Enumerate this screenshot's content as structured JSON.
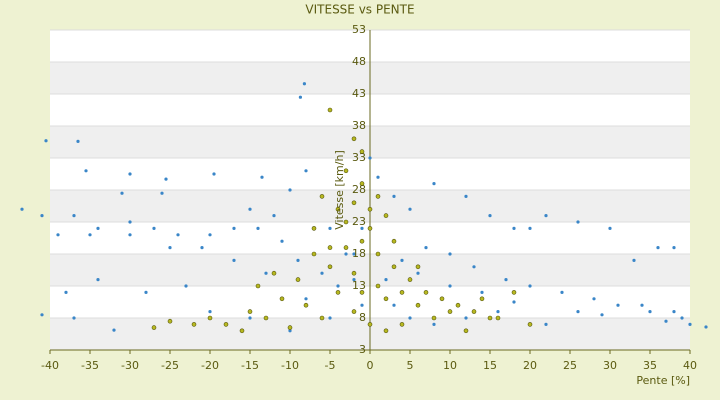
{
  "chart_data": {
    "type": "scatter",
    "title": "VITESSE vs PENTE",
    "x_label": "Pente [%]",
    "y_label": "Vitesse [km/h]",
    "xlim": [
      -40,
      40
    ],
    "xticks": [
      -40,
      -35,
      -30,
      -25,
      -20,
      -15,
      -10,
      -5,
      0,
      5,
      10,
      15,
      20,
      25,
      30,
      35,
      40
    ],
    "ylim": [
      3,
      53
    ],
    "yticks": [
      3,
      8,
      13,
      18,
      23,
      28,
      33,
      38,
      43,
      48,
      53
    ],
    "grid": true,
    "series": [
      {
        "color": "#3a86c8",
        "x": [
          -8.2,
          -8.7,
          -40.5,
          -36.5,
          -35.5,
          -30,
          -31,
          -26,
          -25.5,
          -19.5,
          -13.5,
          -8,
          -43.5,
          -41,
          -39,
          -35,
          -30,
          -25,
          -21,
          -15,
          -12,
          -10,
          -6,
          -5,
          -3,
          -2,
          -1,
          -38,
          -34,
          -28,
          -23,
          -17,
          -13,
          -8,
          -37,
          -32,
          -27,
          -20,
          -15,
          -10,
          -5,
          -41,
          0,
          1,
          3,
          5,
          8,
          12,
          15,
          18,
          20,
          22,
          26,
          30,
          33,
          36,
          38,
          42,
          35,
          31,
          28,
          24,
          20,
          17,
          13,
          10,
          7,
          4,
          2,
          3,
          5,
          8,
          12,
          16,
          22,
          26,
          34,
          38,
          39,
          40,
          37,
          29,
          18,
          14,
          10,
          6,
          -1,
          -2,
          -4,
          -6,
          -9,
          -11,
          -14,
          -17,
          -20,
          -24,
          -27,
          -30,
          -34,
          -37
        ],
        "values": [
          44.6,
          42.5,
          35.7,
          35.6,
          31,
          30.5,
          27.5,
          27.5,
          29.7,
          30.5,
          30,
          31,
          25,
          24,
          21,
          21,
          21,
          19,
          19,
          25,
          24,
          28,
          27,
          22,
          18,
          14,
          10,
          12,
          14,
          12,
          13,
          17,
          15,
          11,
          8,
          6.1,
          6.5,
          9,
          8,
          6,
          8,
          8.5,
          33,
          30,
          27,
          25,
          29,
          27,
          24,
          22,
          22,
          24,
          23,
          22,
          17,
          19,
          19,
          6.6,
          9,
          10,
          11,
          12,
          13,
          14,
          16,
          18,
          19,
          17,
          14,
          10,
          8,
          7,
          8,
          9,
          7,
          9,
          10,
          9,
          8,
          7,
          7.5,
          8.5,
          10.5,
          12,
          13,
          15,
          22,
          18,
          13,
          15,
          17,
          20,
          22,
          22,
          21,
          21,
          22,
          23,
          22,
          24
        ]
      },
      {
        "color": "#b7b820",
        "x": [
          -5,
          -2,
          -1,
          -3,
          -6,
          -4,
          -2,
          1,
          2,
          0,
          -1,
          -3,
          -5,
          -7,
          -9,
          -8,
          -6,
          -10,
          -4,
          -2,
          1,
          3,
          5,
          7,
          9,
          11,
          13,
          15,
          12,
          8,
          4,
          2,
          0,
          -2,
          -1,
          1,
          2,
          3,
          0,
          -1,
          -3,
          -7,
          -12,
          -15,
          -18,
          -22,
          -27,
          -25,
          -20,
          6,
          10,
          14,
          16,
          20,
          -14,
          -11,
          -5,
          4,
          6,
          -16,
          -13,
          18
        ],
        "values": [
          40.5,
          36,
          34,
          31,
          27,
          25,
          26,
          27,
          24,
          22,
          20,
          19,
          19,
          18,
          14,
          10,
          8,
          6.5,
          12,
          15,
          18,
          16,
          14,
          12,
          11,
          10,
          9,
          8,
          6,
          8,
          7,
          6,
          7,
          9,
          12,
          13,
          11,
          20,
          25,
          29,
          23,
          22,
          15,
          9,
          7,
          7,
          6.5,
          7.5,
          8,
          10,
          9,
          11,
          8,
          7,
          13,
          11,
          16,
          12,
          16,
          6,
          8,
          12
        ]
      }
    ]
  }
}
